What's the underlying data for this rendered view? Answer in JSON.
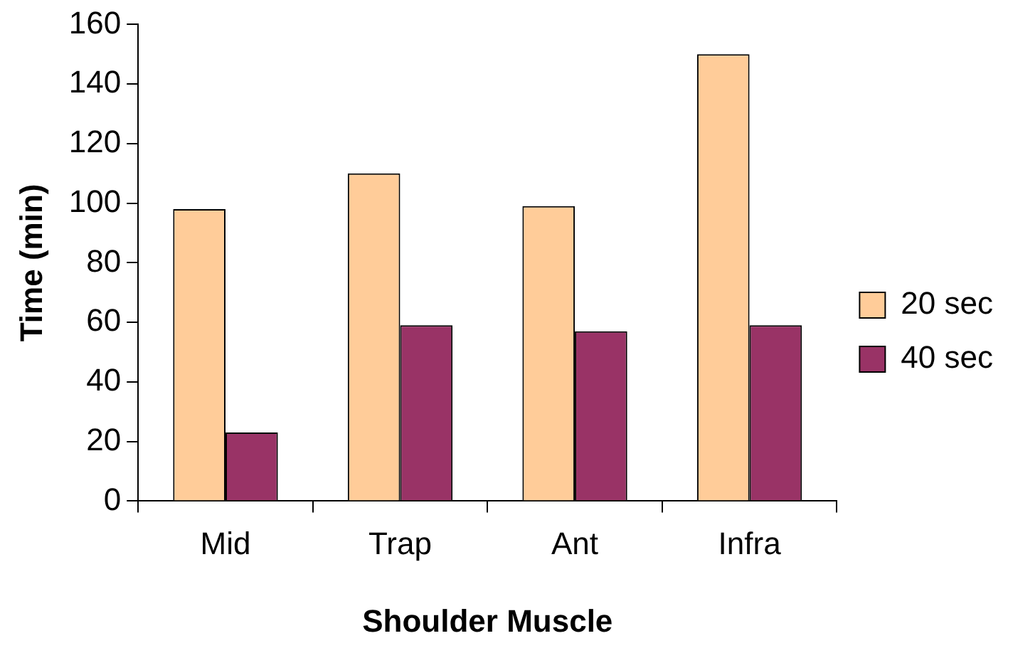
{
  "chart_data": {
    "type": "bar",
    "xlabel": "Shoulder Muscle",
    "ylabel": "Time (min)",
    "categories": [
      "Mid",
      "Trap",
      "Ant",
      "Infra"
    ],
    "series": [
      {
        "name": "20 sec",
        "color": "#ffcc99",
        "values": [
          98,
          110,
          99,
          150
        ]
      },
      {
        "name": "40 sec",
        "color": "#993366",
        "values": [
          23,
          59,
          57,
          59
        ]
      }
    ],
    "ylim": [
      0,
      160
    ],
    "yticks": [
      0,
      20,
      40,
      60,
      80,
      100,
      120,
      140,
      160
    ],
    "grid": false,
    "legend": "right"
  }
}
